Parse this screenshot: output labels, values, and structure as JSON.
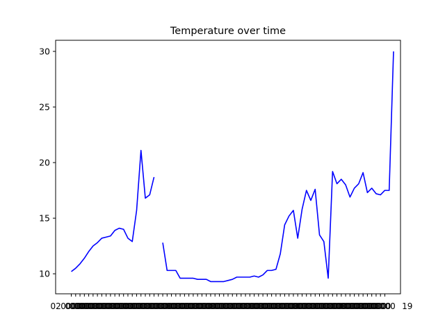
{
  "chart_data": {
    "type": "line",
    "title": "Temperature over time",
    "xlabel": "",
    "ylabel": "",
    "ylim": [
      8.2,
      31.0
    ],
    "xlim": [
      -3.6,
      75.6
    ],
    "yticks": [
      10,
      15,
      20,
      25,
      30
    ],
    "grid": false,
    "line_color": "#0000ff",
    "x_tick_count": 73,
    "x_tick_labels_overlapping": [
      "02",
      "19"
    ],
    "series": [
      {
        "values": [
          10.2,
          10.5,
          10.9,
          11.4,
          12.0,
          12.5,
          12.8,
          13.2,
          13.3,
          13.4,
          13.9,
          14.1,
          14.0,
          13.2,
          12.9,
          15.7,
          21.1,
          16.8,
          17.1,
          18.7,
          null,
          12.8,
          10.3,
          10.3,
          10.3,
          9.6,
          9.6,
          9.6,
          9.6,
          9.5,
          9.5,
          9.5,
          9.3,
          9.3,
          9.3,
          9.3,
          9.4,
          9.5,
          9.7,
          9.7,
          9.7,
          9.7,
          9.8,
          9.7,
          9.9,
          10.3,
          10.3,
          10.4,
          11.8,
          14.4,
          15.2,
          15.7,
          13.2,
          15.8,
          17.5,
          16.6,
          17.6,
          13.5,
          12.9,
          9.6,
          19.2,
          18.1,
          18.5,
          18.0,
          16.9,
          17.7,
          18.1,
          19.1,
          17.3,
          17.7,
          17.2,
          17.1,
          17.5,
          17.5,
          30.0
        ]
      }
    ]
  }
}
